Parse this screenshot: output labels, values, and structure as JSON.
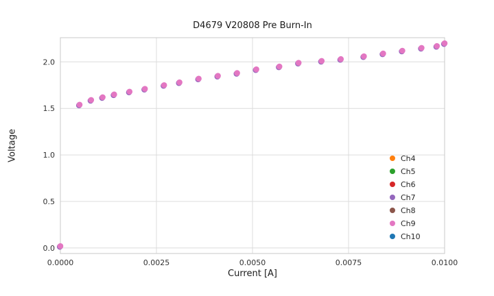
{
  "chart_data": {
    "type": "scatter",
    "title": "D4679 V20808 Pre Burn-In",
    "xlabel": "Current [A]",
    "ylabel": "Voltage",
    "xlim": [
      0,
      0.01
    ],
    "ylim": [
      -0.06,
      2.26
    ],
    "xticks": [
      0,
      0.0025,
      0.005,
      0.0075,
      0.01
    ],
    "xtick_labels": [
      "0.0000",
      "0.0025",
      "0.0050",
      "0.0075",
      "0.0100"
    ],
    "yticks": [
      0,
      0.5,
      1.0,
      1.5,
      2.0
    ],
    "ytick_labels": [
      "0.0",
      "0.5",
      "1.0",
      "1.5",
      "2.0"
    ],
    "grid": true,
    "legend_position": "lower right",
    "x": [
      0.0,
      0.0005,
      0.0008,
      0.0011,
      0.0014,
      0.0018,
      0.0022,
      0.0027,
      0.0031,
      0.0036,
      0.0041,
      0.0046,
      0.0051,
      0.0057,
      0.0062,
      0.0068,
      0.0073,
      0.0079,
      0.0084,
      0.0089,
      0.0094,
      0.0098,
      0.01
    ],
    "voltage": [
      0.02,
      1.54,
      1.59,
      1.62,
      1.65,
      1.68,
      1.71,
      1.75,
      1.78,
      1.82,
      1.85,
      1.88,
      1.92,
      1.95,
      1.99,
      2.01,
      2.03,
      2.06,
      2.09,
      2.12,
      2.15,
      2.17,
      2.2
    ],
    "overlap_note": "All channel series coincide at marker scale; Ch9 (pink) is drawn on top with Ch7 (purple) edges peeking out beneath.",
    "series": [
      {
        "name": "Ch4",
        "color": "#ff7f0e"
      },
      {
        "name": "Ch5",
        "color": "#2ca02c"
      },
      {
        "name": "Ch6",
        "color": "#d62728"
      },
      {
        "name": "Ch7",
        "color": "#9467bd"
      },
      {
        "name": "Ch8",
        "color": "#8c564b"
      },
      {
        "name": "Ch9",
        "color": "#e377c2"
      },
      {
        "name": "Ch10",
        "color": "#1f77b4"
      }
    ],
    "style": {
      "marker_color": "#e377c2",
      "under_marker_color": "#9467bd",
      "marker_radius": 4.3,
      "grid_color": "#dcdcdc",
      "spine_color": "#c8c8c8",
      "background": "#ffffff"
    }
  }
}
